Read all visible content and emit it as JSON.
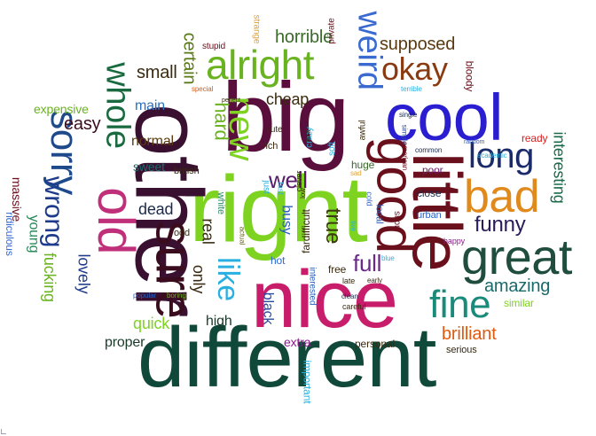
{
  "words": [
    {
      "text": "different",
      "color": "#10483a"
    },
    {
      "text": "nice",
      "color": "#c81d6a"
    },
    {
      "text": "right",
      "color": "#7ed321"
    },
    {
      "text": "other",
      "color": "#3a1030"
    },
    {
      "text": "big",
      "color": "#5a0e3c"
    },
    {
      "text": "little",
      "color": "#6a0f1c"
    },
    {
      "text": "cool",
      "color": "#2a1ed0"
    },
    {
      "text": "great",
      "color": "#1f4d3e"
    },
    {
      "text": "bad",
      "color": "#e08a1e"
    },
    {
      "text": "sure",
      "color": "#3a0c1e"
    },
    {
      "text": "old",
      "color": "#c0307a"
    },
    {
      "text": "good",
      "color": "#6a0f1c"
    },
    {
      "text": "alright",
      "color": "#6ab320"
    },
    {
      "text": "sorry",
      "color": "#1e4a8c"
    },
    {
      "text": "whole",
      "color": "#1a6a40"
    },
    {
      "text": "new",
      "color": "#7ed321"
    },
    {
      "text": "weird",
      "color": "#3a6ad0"
    },
    {
      "text": "okay",
      "color": "#8a3a10"
    },
    {
      "text": "fine",
      "color": "#1a8a7a"
    },
    {
      "text": "long",
      "color": "#1a2a6a"
    },
    {
      "text": "wrong",
      "color": "#1e3a8c"
    },
    {
      "text": "like",
      "color": "#2ab0e0"
    },
    {
      "text": "well",
      "color": "#5a1a6a"
    },
    {
      "text": "true",
      "color": "#3a3a10"
    },
    {
      "text": "funny",
      "color": "#2a1a5a"
    },
    {
      "text": "full",
      "color": "#6a2a8a"
    },
    {
      "text": "amazing",
      "color": "#1a6a6a"
    },
    {
      "text": "brilliant",
      "color": "#e05a10"
    },
    {
      "text": "interesting",
      "color": "#1a6a4a"
    },
    {
      "text": "hard",
      "color": "#6ab320"
    },
    {
      "text": "certain",
      "color": "#5a7a1a"
    },
    {
      "text": "horrible",
      "color": "#3a6a2a"
    },
    {
      "text": "supposed",
      "color": "#5a3a10"
    },
    {
      "text": "small",
      "color": "#3a2a10"
    },
    {
      "text": "cheap",
      "color": "#3a2a10"
    },
    {
      "text": "easy",
      "color": "#3a0c1e"
    },
    {
      "text": "main",
      "color": "#2a70c0"
    },
    {
      "text": "expensive",
      "color": "#6ab320"
    },
    {
      "text": "normal",
      "color": "#5a3a10"
    },
    {
      "text": "lovely",
      "color": "#1e3a8c"
    },
    {
      "text": "fucking",
      "color": "#6ab320"
    },
    {
      "text": "young",
      "color": "#2a8a5a"
    },
    {
      "text": "massive",
      "color": "#6a0f1c"
    },
    {
      "text": "ridiculous",
      "color": "#3a6ad0"
    },
    {
      "text": "dead",
      "color": "#1a2a4a"
    },
    {
      "text": "sweet",
      "color": "#1a6a6a"
    },
    {
      "text": "british",
      "color": "#3a2a10"
    },
    {
      "text": "quick",
      "color": "#7ed321"
    },
    {
      "text": "proper",
      "color": "#1a3a2a"
    },
    {
      "text": "high",
      "color": "#1a3a2a"
    },
    {
      "text": "only",
      "color": "#3a2a10"
    },
    {
      "text": "real",
      "color": "#3a2a10"
    },
    {
      "text": "odd",
      "color": "#3a2a10"
    },
    {
      "text": "white",
      "color": "#2a8a6a"
    },
    {
      "text": "busy",
      "color": "#2a60c0"
    },
    {
      "text": "hot",
      "color": "#2a6ad0"
    },
    {
      "text": "black",
      "color": "#2a4aa0"
    },
    {
      "text": "extra",
      "color": "#8a1a8a"
    },
    {
      "text": "important",
      "color": "#2ab0e0"
    },
    {
      "text": "personal",
      "color": "#3a2a10"
    },
    {
      "text": "serious",
      "color": "#3a2a10"
    },
    {
      "text": "similar",
      "color": "#7ed321"
    },
    {
      "text": "close",
      "color": "#1a2a4a"
    },
    {
      "text": "poor",
      "color": "#6a1a6a"
    },
    {
      "text": "huge",
      "color": "#3a6a2a"
    },
    {
      "text": "rich",
      "color": "#3a2a10"
    },
    {
      "text": "cute",
      "color": "#3a2a10"
    },
    {
      "text": "crazy",
      "color": "#2ab0e0"
    },
    {
      "text": "soft",
      "color": "#2ab0e0"
    },
    {
      "text": "awful",
      "color": "#3a2a10"
    },
    {
      "text": "stupid",
      "color": "#6a0f1c"
    },
    {
      "text": "strange",
      "color": "#e0a030"
    },
    {
      "text": "private",
      "color": "#6a0f1c"
    },
    {
      "text": "bloody",
      "color": "#6a0f1c"
    },
    {
      "text": "ready",
      "color": "#e01a1a"
    },
    {
      "text": "free",
      "color": "#3a2a10"
    },
    {
      "text": "late",
      "color": "#3a2a10"
    },
    {
      "text": "clean",
      "color": "#1a2a4a"
    },
    {
      "text": "careful",
      "color": "#3a2a10"
    },
    {
      "text": "early",
      "color": "#3a2a10"
    },
    {
      "text": "interested",
      "color": "#2a60c0"
    },
    {
      "text": "local",
      "color": "#2a60c0"
    },
    {
      "text": "cold",
      "color": "#3a6ad0"
    },
    {
      "text": "fardifficult",
      "color": "#3a2a10"
    },
    {
      "text": "just",
      "color": "#2ab0e0"
    },
    {
      "text": "fast",
      "color": "#2ab0e0"
    },
    {
      "text": "clever",
      "color": "#3a2a10"
    },
    {
      "text": "low",
      "color": "#3a2a10"
    },
    {
      "text": "live",
      "color": "#2ab0e0"
    },
    {
      "text": "short",
      "color": "#6a0f1c"
    },
    {
      "text": "urban",
      "color": "#2a60c0"
    },
    {
      "text": "happy",
      "color": "#8a1a8a"
    },
    {
      "text": "blue",
      "color": "#2ab0e0"
    },
    {
      "text": "actual",
      "color": "#6a6a2a"
    },
    {
      "text": "popular",
      "color": "#2a60c0"
    },
    {
      "text": "boring",
      "color": "#6ab320"
    },
    {
      "text": "academic",
      "color": "#2ab0e0"
    },
    {
      "text": "random",
      "color": "#2a60c0"
    },
    {
      "text": "common",
      "color": "#1a2a4a"
    },
    {
      "text": "american",
      "color": "#6a0f1c"
    },
    {
      "text": "simple",
      "color": "#2a4aa0"
    },
    {
      "text": "single",
      "color": "#1a2a4a"
    },
    {
      "text": "terrible",
      "color": "#2ab0e0"
    },
    {
      "text": "sad",
      "color": "#e0a030"
    },
    {
      "text": "mad",
      "color": "#3a2a10"
    },
    {
      "text": "special",
      "color": "#e05a10"
    },
    {
      "text": "perfect",
      "color": "#3a2a10"
    }
  ]
}
